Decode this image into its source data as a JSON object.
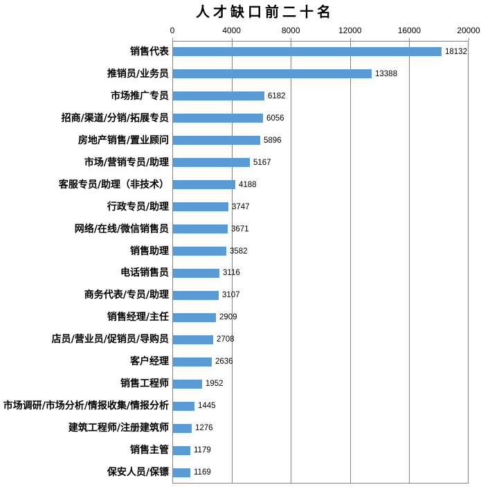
{
  "chart_data": {
    "type": "bar",
    "orientation": "horizontal",
    "title": "人才缺口前二十名",
    "categories": [
      "销售代表",
      "推销员/业务员",
      "市场推广专员",
      "招商/渠道/分销/拓展专员",
      "房地产销售/置业顾问",
      "市场/营销专员/助理",
      "客服专员/助理（非技术）",
      "行政专员/助理",
      "网络/在线/微信销售员",
      "销售助理",
      "电话销售员",
      "商务代表/专员/助理",
      "销售经理/主任",
      "店员/营业员/促销员/导购员",
      "客户经理",
      "销售工程师",
      "市场调研/市场分析/情报收集/情报分析",
      "建筑工程师/注册建筑师",
      "销售主管",
      "保安人员/保镖"
    ],
    "values": [
      18132,
      13388,
      6182,
      6056,
      5896,
      5167,
      4188,
      3747,
      3671,
      3582,
      3116,
      3107,
      2909,
      2708,
      2636,
      1952,
      1445,
      1276,
      1179,
      1169
    ],
    "xlabel": "",
    "ylabel": "",
    "xlim": [
      0,
      20000
    ],
    "x_ticks": [
      0,
      4000,
      8000,
      12000,
      16000,
      20000
    ],
    "grid": true,
    "legend": false,
    "colors": {
      "bar": "#5B9BD5",
      "grid": "#848484",
      "text": "#000000",
      "background": "#FFFFFF"
    }
  }
}
